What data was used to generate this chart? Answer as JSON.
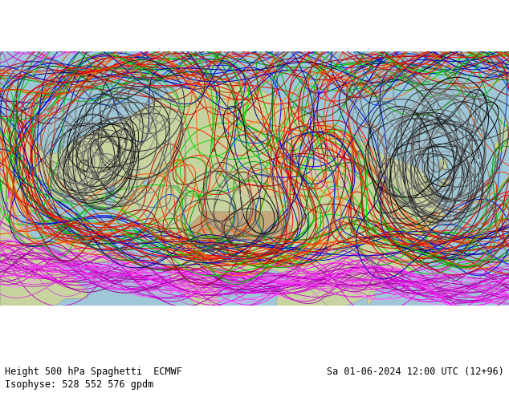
{
  "title_left": "Height 500 hPa Spaghetti  ECMWF",
  "title_right": "Sa 01-06-2024 12:00 UTC (12+96)",
  "subtitle": "Isophyse: 528 552 576 gpdm",
  "map_extent_lon": [
    20,
    160
  ],
  "map_extent_lat": [
    10,
    80
  ],
  "isohypse_levels": [
    528,
    552,
    576
  ],
  "n_members": 51,
  "fig_width": 6.34,
  "fig_height": 4.9,
  "dpi": 100,
  "text_fontsize": 8.5,
  "subtitle_fontsize": 8.5,
  "background_color": "#ffffff",
  "label_color": "#000000",
  "seed": 42,
  "colors_528": [
    "#ff00ff",
    "#dd00dd",
    "#bb00bb",
    "#cc00cc",
    "#ee00ee",
    "#aa00aa",
    "#ff44ff",
    "#cc44cc",
    "#990099",
    "#ff22ff",
    "#ee44ee",
    "#bb22bb",
    "#dd44dd",
    "#aa22aa",
    "#ff66ff",
    "#cc66cc",
    "#ee66ee",
    "#880088",
    "#ff88ff",
    "#dd66dd"
  ],
  "colors_552": [
    "#ff0000",
    "#0000ff",
    "#00aa00",
    "#ff8800",
    "#aa0000",
    "#0000aa",
    "#00cc00",
    "#ff4400",
    "#cc0000",
    "#0044dd",
    "#880000",
    "#000088",
    "#008800",
    "#ff6600",
    "#dd0000",
    "#0000cc",
    "#00bb00",
    "#ee4400",
    "#bb0000",
    "#0000bb",
    "#00dd00",
    "#ff2200",
    "#cc4400",
    "#006600",
    "#dd2200"
  ],
  "colors_576": [
    "#000000",
    "#333333",
    "#555555",
    "#222222",
    "#666666",
    "#444444",
    "#111111",
    "#777777",
    "#999999",
    "#888888",
    "#3a3a3a",
    "#2a2a2a",
    "#1a1a1a",
    "#4a4a4a",
    "#6a6a6a",
    "#5a5a5a",
    "#7a7a7a",
    "#0a0a0a",
    "#8a8a8a",
    "#3f3f3f"
  ]
}
